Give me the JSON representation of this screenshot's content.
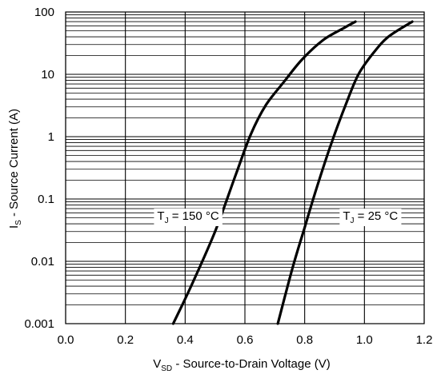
{
  "chart_data": {
    "type": "line",
    "x_scale": "linear",
    "y_scale": "log",
    "xlim": [
      0.0,
      1.2
    ],
    "ylim": [
      0.001,
      100
    ],
    "x_ticks": [
      "0.0",
      "0.2",
      "0.4",
      "0.6",
      "0.8",
      "1.0",
      "1.2"
    ],
    "y_ticks": [
      "100",
      "10",
      "1",
      "0.1",
      "0.01",
      "0.001"
    ],
    "xlabel": {
      "main": "V",
      "sub": "SD",
      "rest": " - Source-to-Drain Voltage (V)"
    },
    "ylabel": {
      "main": "I",
      "sub": "S",
      "rest": " - Source Current (A)"
    },
    "grid": true,
    "series": [
      {
        "name": "T_J = 150 °C",
        "x": [
          0.36,
          0.42,
          0.5,
          0.57,
          0.62,
          0.67,
          0.73,
          0.79,
          0.86,
          0.93,
          0.97
        ],
        "y": [
          0.001,
          0.004,
          0.03,
          0.25,
          1.1,
          3.2,
          7.5,
          17,
          35,
          55,
          70
        ]
      },
      {
        "name": "T_J = 25 °C",
        "x": [
          0.71,
          0.76,
          0.8,
          0.84,
          0.89,
          0.94,
          0.98,
          1.03,
          1.08,
          1.16
        ],
        "y": [
          0.001,
          0.008,
          0.035,
          0.15,
          0.8,
          3.5,
          10,
          22,
          40,
          70
        ]
      }
    ],
    "annotations": [
      {
        "series": 0,
        "main": "T",
        "sub": "J",
        "rest": " = 150 °C",
        "x": 0.41,
        "y": 0.1
      },
      {
        "series": 1,
        "main": "T",
        "sub": "J",
        "rest": " = 25 °C",
        "x": 1.02,
        "y": 0.1
      }
    ]
  }
}
